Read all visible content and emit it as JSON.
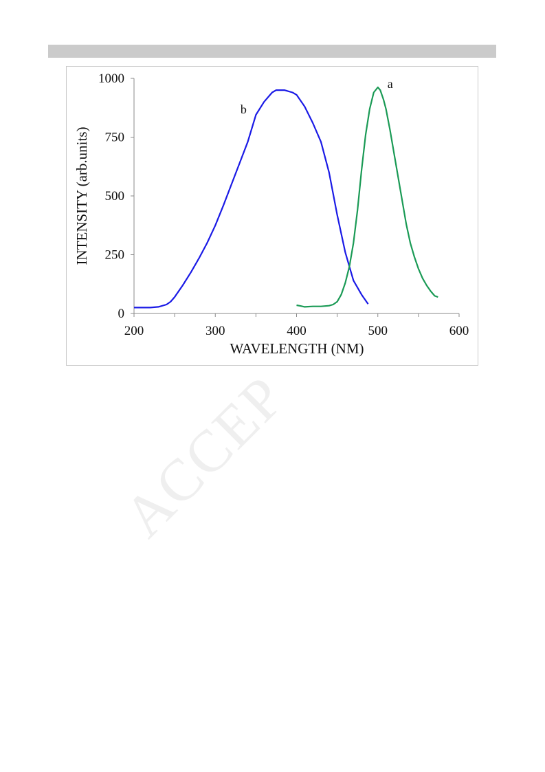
{
  "watermark": "ACCEP",
  "chart_data": {
    "type": "line",
    "title": "",
    "xlabel": "WAVELENGTH (NM)",
    "ylabel": "INTENSITY (arb.units)",
    "xlim": [
      200,
      600
    ],
    "ylim": [
      0,
      1000
    ],
    "xticks": [
      200,
      300,
      400,
      500,
      600
    ],
    "yticks": [
      0,
      250,
      500,
      750,
      1000
    ],
    "grid": false,
    "legend": "none",
    "series": [
      {
        "label": "b",
        "color": "#1a1ae6",
        "points": [
          [
            200,
            25
          ],
          [
            220,
            25
          ],
          [
            230,
            28
          ],
          [
            240,
            38
          ],
          [
            245,
            50
          ],
          [
            250,
            70
          ],
          [
            260,
            120
          ],
          [
            270,
            175
          ],
          [
            280,
            235
          ],
          [
            290,
            300
          ],
          [
            300,
            375
          ],
          [
            310,
            460
          ],
          [
            320,
            550
          ],
          [
            330,
            640
          ],
          [
            340,
            730
          ],
          [
            350,
            845
          ],
          [
            360,
            900
          ],
          [
            370,
            940
          ],
          [
            375,
            950
          ],
          [
            385,
            950
          ],
          [
            390,
            945
          ],
          [
            395,
            940
          ],
          [
            400,
            930
          ],
          [
            410,
            880
          ],
          [
            420,
            810
          ],
          [
            430,
            730
          ],
          [
            440,
            600
          ],
          [
            450,
            420
          ],
          [
            460,
            260
          ],
          [
            470,
            140
          ],
          [
            480,
            80
          ],
          [
            488,
            40
          ]
        ]
      },
      {
        "label": "a",
        "color": "#1a9a55",
        "points": [
          [
            400,
            35
          ],
          [
            405,
            32
          ],
          [
            410,
            28
          ],
          [
            420,
            30
          ],
          [
            430,
            30
          ],
          [
            440,
            33
          ],
          [
            445,
            38
          ],
          [
            450,
            50
          ],
          [
            455,
            80
          ],
          [
            460,
            130
          ],
          [
            465,
            200
          ],
          [
            470,
            300
          ],
          [
            475,
            440
          ],
          [
            480,
            610
          ],
          [
            485,
            760
          ],
          [
            490,
            870
          ],
          [
            495,
            940
          ],
          [
            500,
            962
          ],
          [
            503,
            950
          ],
          [
            507,
            910
          ],
          [
            510,
            870
          ],
          [
            515,
            780
          ],
          [
            520,
            680
          ],
          [
            525,
            580
          ],
          [
            530,
            480
          ],
          [
            535,
            380
          ],
          [
            540,
            300
          ],
          [
            545,
            240
          ],
          [
            550,
            190
          ],
          [
            555,
            150
          ],
          [
            560,
            120
          ],
          [
            565,
            95
          ],
          [
            570,
            75
          ],
          [
            574,
            70
          ]
        ]
      }
    ]
  }
}
